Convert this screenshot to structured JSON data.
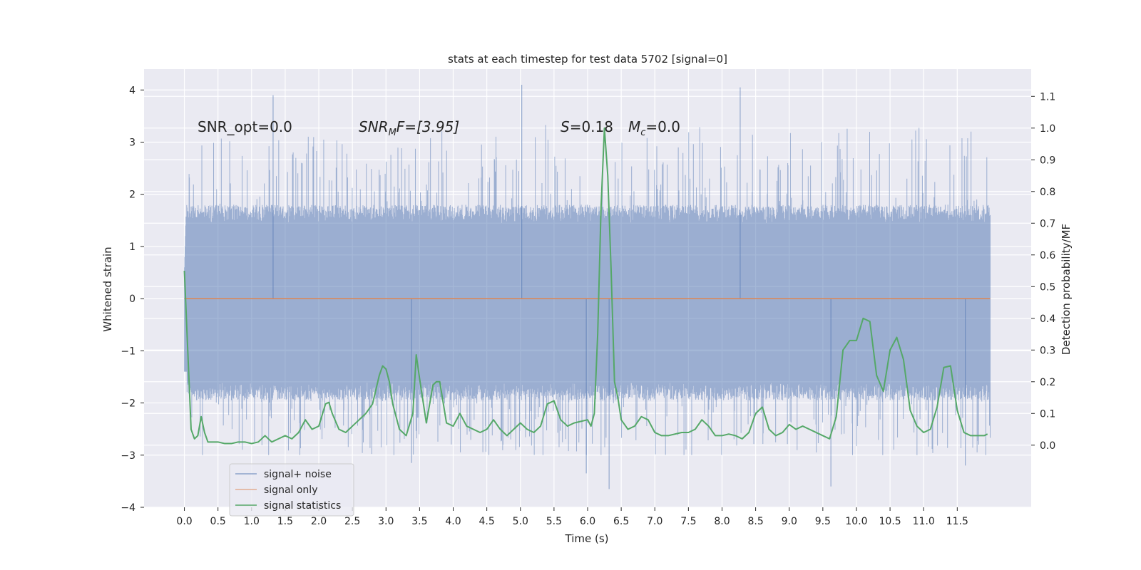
{
  "chart_data": {
    "type": "line",
    "title": "stats at each timestep for test data 5702 [signal=0]",
    "xlabel": "Time (s)",
    "ylabel": "Whitened strain",
    "y2label": "Detection probability/MF",
    "xlim": [
      -0.6,
      12.6
    ],
    "ylim": [
      -4.0,
      4.4
    ],
    "y2lim": [
      -0.196,
      1.186
    ],
    "x_ticks": [
      0.0,
      0.5,
      1.0,
      1.5,
      2.0,
      2.5,
      3.0,
      3.5,
      4.0,
      4.5,
      5.0,
      5.5,
      6.0,
      6.5,
      7.0,
      7.5,
      8.0,
      8.5,
      9.0,
      9.5,
      10.0,
      10.5,
      11.0,
      11.5
    ],
    "x_tick_labels": [
      "0.0",
      "0.5",
      "1.0",
      "1.5",
      "2.0",
      "2.5",
      "3.0",
      "3.5",
      "4.0",
      "4.5",
      "5.0",
      "5.5",
      "6.0",
      "6.5",
      "7.0",
      "7.5",
      "8.0",
      "8.5",
      "9.0",
      "9.5",
      "10.0",
      "10.5",
      "11.0",
      "11.5"
    ],
    "y_ticks": [
      -4,
      -3,
      -2,
      -1,
      0,
      1,
      2,
      3,
      4
    ],
    "y_tick_labels": [
      "−4",
      "−3",
      "−2",
      "−1",
      "0",
      "1",
      "2",
      "3",
      "4"
    ],
    "y2_ticks": [
      0.0,
      0.1,
      0.2,
      0.3,
      0.4,
      0.5,
      0.6,
      0.7,
      0.8,
      0.9,
      1.0,
      1.1
    ],
    "y2_tick_labels": [
      "0.0",
      "0.1",
      "0.2",
      "0.3",
      "0.4",
      "0.5",
      "0.6",
      "0.7",
      "0.8",
      "0.9",
      "1.0",
      "1.1"
    ],
    "grid": true,
    "legend_position": "lower-left",
    "annotations": {
      "snr_opt": "SNR_opt=0.0",
      "snr_mf_main": "SNR",
      "snr_mf_sub": "M",
      "snr_mf_rest": "F=[3.95]",
      "s_main": "S",
      "s_rest": "=0.18",
      "mc_main": "M",
      "mc_sub": "c",
      "mc_rest": "=0.0"
    },
    "series": [
      {
        "name": "signal+ noise",
        "axis": "left",
        "color": "#4c72b0",
        "kind": "noise",
        "x_range": [
          0.0,
          11.99
        ],
        "envelope": {
          "typical_high": 1.45,
          "typical_low": -1.6,
          "max": 4.1,
          "min": -3.65
        },
        "peaks": [
          {
            "x": 1.32,
            "y": 3.9
          },
          {
            "x": 5.02,
            "y": 4.1
          },
          {
            "x": 8.27,
            "y": 4.05
          },
          {
            "x": 6.32,
            "y": -3.65
          },
          {
            "x": 9.62,
            "y": -3.6
          },
          {
            "x": 3.38,
            "y": -3.15
          },
          {
            "x": 5.98,
            "y": -3.35
          },
          {
            "x": 11.62,
            "y": -3.2
          }
        ]
      },
      {
        "name": "signal only",
        "axis": "left",
        "color": "#dd8452",
        "x": [
          0.0,
          11.99
        ],
        "y": [
          0.0,
          0.0
        ]
      },
      {
        "name": "signal statistics",
        "axis": "right",
        "color": "#55a868",
        "x": [
          0.0,
          0.05,
          0.1,
          0.15,
          0.2,
          0.25,
          0.3,
          0.35,
          0.4,
          0.45,
          0.5,
          0.6,
          0.7,
          0.8,
          0.9,
          1.0,
          1.1,
          1.2,
          1.3,
          1.4,
          1.5,
          1.6,
          1.7,
          1.8,
          1.9,
          2.0,
          2.1,
          2.15,
          2.2,
          2.3,
          2.4,
          2.5,
          2.6,
          2.7,
          2.8,
          2.9,
          2.95,
          3.0,
          3.05,
          3.1,
          3.2,
          3.3,
          3.4,
          3.45,
          3.5,
          3.6,
          3.7,
          3.75,
          3.8,
          3.9,
          4.0,
          4.1,
          4.2,
          4.3,
          4.4,
          4.5,
          4.6,
          4.7,
          4.8,
          4.9,
          5.0,
          5.1,
          5.2,
          5.3,
          5.4,
          5.5,
          5.6,
          5.7,
          5.8,
          5.9,
          6.0,
          6.05,
          6.1,
          6.15,
          6.2,
          6.25,
          6.3,
          6.35,
          6.4,
          6.45,
          6.5,
          6.6,
          6.7,
          6.8,
          6.9,
          7.0,
          7.1,
          7.2,
          7.3,
          7.4,
          7.5,
          7.6,
          7.7,
          7.8,
          7.9,
          8.0,
          8.1,
          8.2,
          8.3,
          8.4,
          8.5,
          8.6,
          8.7,
          8.8,
          8.9,
          9.0,
          9.1,
          9.2,
          9.3,
          9.4,
          9.5,
          9.6,
          9.7,
          9.8,
          9.9,
          10.0,
          10.1,
          10.2,
          10.3,
          10.4,
          10.5,
          10.6,
          10.7,
          10.8,
          10.9,
          11.0,
          11.1,
          11.2,
          11.3,
          11.4,
          11.5,
          11.6,
          11.7,
          11.8,
          11.9,
          11.95
        ],
        "y": [
          0.55,
          0.3,
          0.05,
          0.02,
          0.03,
          0.09,
          0.04,
          0.01,
          0.01,
          0.01,
          0.01,
          0.005,
          0.005,
          0.01,
          0.01,
          0.005,
          0.01,
          0.03,
          0.01,
          0.02,
          0.03,
          0.02,
          0.04,
          0.08,
          0.05,
          0.06,
          0.13,
          0.135,
          0.1,
          0.05,
          0.04,
          0.06,
          0.08,
          0.1,
          0.13,
          0.22,
          0.25,
          0.24,
          0.2,
          0.13,
          0.05,
          0.03,
          0.1,
          0.285,
          0.21,
          0.07,
          0.19,
          0.2,
          0.2,
          0.07,
          0.06,
          0.1,
          0.06,
          0.05,
          0.04,
          0.05,
          0.08,
          0.05,
          0.03,
          0.05,
          0.07,
          0.05,
          0.04,
          0.06,
          0.13,
          0.14,
          0.08,
          0.06,
          0.07,
          0.075,
          0.08,
          0.06,
          0.1,
          0.35,
          0.75,
          1.0,
          0.85,
          0.55,
          0.2,
          0.15,
          0.08,
          0.05,
          0.06,
          0.09,
          0.08,
          0.04,
          0.03,
          0.03,
          0.035,
          0.04,
          0.04,
          0.05,
          0.08,
          0.06,
          0.03,
          0.03,
          0.035,
          0.03,
          0.02,
          0.04,
          0.1,
          0.12,
          0.05,
          0.03,
          0.04,
          0.065,
          0.05,
          0.06,
          0.05,
          0.04,
          0.03,
          0.02,
          0.09,
          0.3,
          0.33,
          0.33,
          0.4,
          0.39,
          0.22,
          0.17,
          0.3,
          0.34,
          0.27,
          0.11,
          0.06,
          0.04,
          0.05,
          0.12,
          0.245,
          0.25,
          0.11,
          0.04,
          0.03,
          0.03,
          0.03,
          0.035
        ]
      }
    ]
  }
}
